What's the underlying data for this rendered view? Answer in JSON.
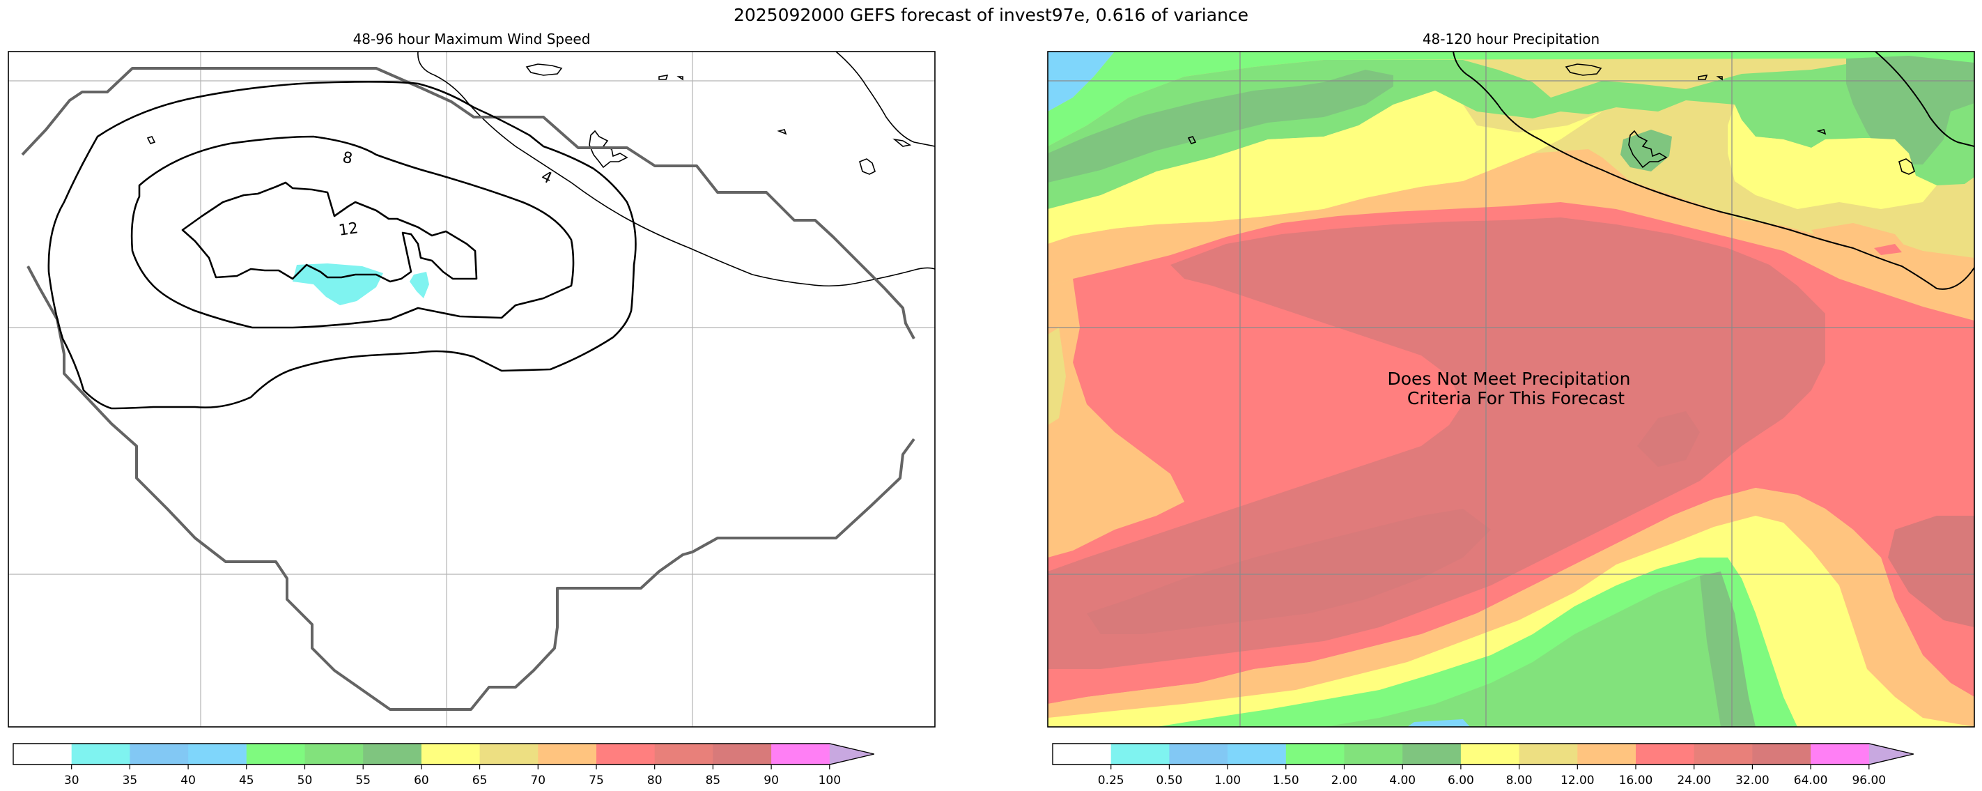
{
  "suptitle": "2025092000 GEFS forecast of invest97e, 0.616 of variance",
  "chart_data": [
    {
      "type": "contour",
      "title": "48-96 hour Maximum Wind Speed",
      "contour_labels": [
        "4",
        "8",
        "12"
      ],
      "colorbar": {
        "ticks": [
          "30",
          "35",
          "40",
          "45",
          "50",
          "55",
          "60",
          "65",
          "70",
          "75",
          "80",
          "85",
          "90",
          "100"
        ],
        "colors": [
          "#ffffff",
          "#7ff3f0",
          "#82c8f4",
          "#7fd6fb",
          "#7ffa7f",
          "#82e27c",
          "#7fc57f",
          "#ffff7f",
          "#eddf82",
          "#ffc47f",
          "#ff7f7f",
          "#e8807a",
          "#d87a7a",
          "#ff7ff5",
          "#c8a8e0"
        ]
      }
    },
    {
      "type": "filled-contour",
      "title": "48-120 hour Precipitation",
      "annotation": "Does Not Meet Precipitation\nCriteria For This Forecast",
      "colorbar": {
        "ticks": [
          "0.25",
          "0.50",
          "1.00",
          "1.50",
          "2.00",
          "4.00",
          "6.00",
          "8.00",
          "12.00",
          "16.00",
          "24.00",
          "32.00",
          "64.00",
          "96.00"
        ],
        "colors": [
          "#ffffff",
          "#7ff3f0",
          "#82c8f4",
          "#7fd6fb",
          "#7ffa7f",
          "#82e27c",
          "#7fc57f",
          "#ffff7f",
          "#eddf82",
          "#ffc47f",
          "#ff7f7f",
          "#e8807a",
          "#d87a7a",
          "#ff7ff5",
          "#c8a8e0"
        ]
      }
    }
  ]
}
